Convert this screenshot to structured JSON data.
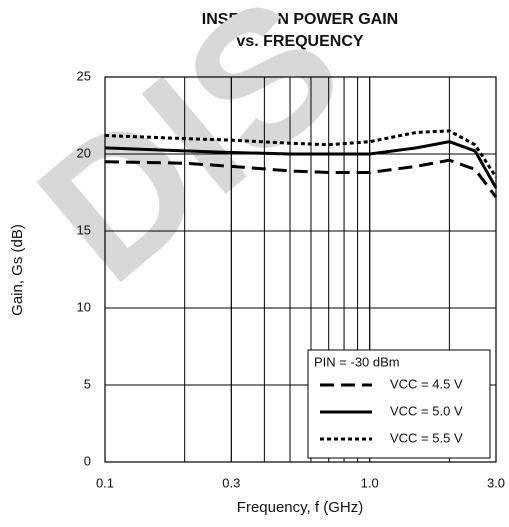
{
  "chart_data": {
    "type": "line",
    "title": "INSERTION POWER GAIN",
    "subtitle": "vs. FREQUENCY",
    "x_label": "Frequency, f (GHz)",
    "y_label": "Gain, Gs (dB)",
    "watermark": "DIS",
    "legend_title": "PIN = -30 dBm",
    "legend": "lower right",
    "log_x": true,
    "grid": true,
    "x": [
      0.1,
      0.2,
      0.3,
      0.5,
      0.7,
      1.0,
      1.5,
      2.0,
      2.5,
      3.0
    ],
    "series": [
      {
        "name": "VCC = 4.5 V",
        "color": "#000000",
        "dash": "dashed",
        "values": [
          19.5,
          19.4,
          19.2,
          18.9,
          18.8,
          18.8,
          19.2,
          19.6,
          19.0,
          17.2
        ]
      },
      {
        "name": "VCC = 5.0 V",
        "color": "#000000",
        "dash": "solid",
        "values": [
          20.4,
          20.2,
          20.1,
          20.0,
          20.0,
          20.0,
          20.4,
          20.8,
          20.2,
          17.8
        ]
      },
      {
        "name": "VCC = 5.5 V",
        "color": "#000000",
        "dash": "dotted",
        "values": [
          21.2,
          21.0,
          20.9,
          20.7,
          20.6,
          20.8,
          21.4,
          21.5,
          20.6,
          18.5
        ]
      }
    ],
    "xlim": [
      0.1,
      3.0
    ],
    "xticks": [
      0.1,
      0.3,
      {
        "value": 1.0,
        "label": "1.0"
      },
      {
        "value": 3.0,
        "label": "3.0"
      }
    ],
    "ylim": [
      0,
      25
    ],
    "yticks": [
      0,
      5,
      10,
      15,
      20,
      25
    ]
  }
}
